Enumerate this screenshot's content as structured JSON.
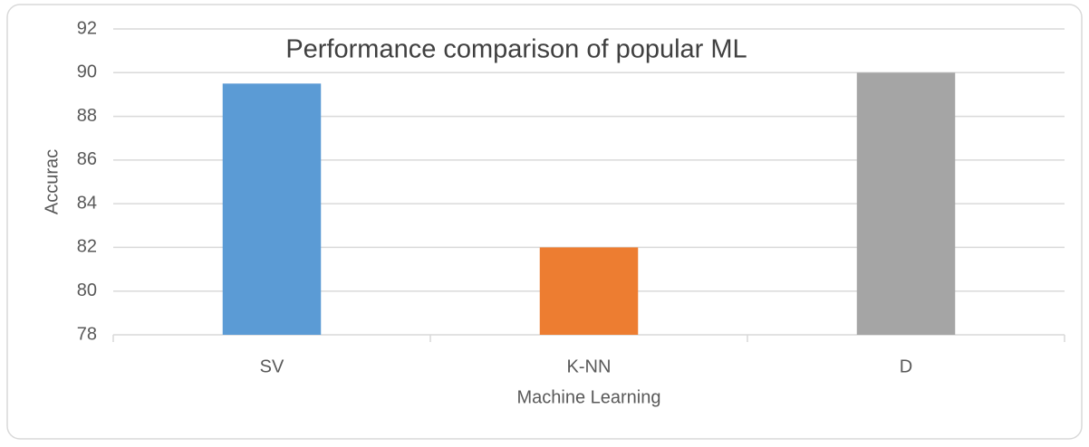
{
  "chart_data": {
    "type": "bar",
    "title": "Performance comparison of popular ML",
    "x_label": "Machine Learning",
    "y_label": "Accurac",
    "categories": [
      "SV",
      "K-NN",
      "D"
    ],
    "values": [
      89.5,
      82,
      90
    ],
    "colors": [
      "#5b9bd5",
      "#ed7d31",
      "#a5a5a5"
    ],
    "ylim": [
      78,
      92
    ],
    "yticks": [
      78,
      80,
      82,
      84,
      86,
      88,
      90,
      92
    ],
    "grid": true
  }
}
